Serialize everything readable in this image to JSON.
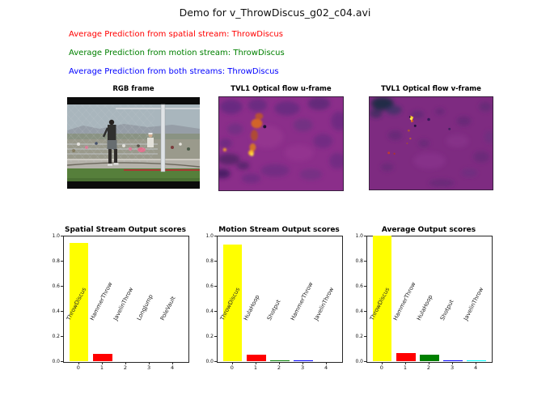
{
  "figure_title": "Demo for v_ThrowDiscus_g02_c04.avi",
  "predictions": [
    {
      "label": "Average Prediction from spatial stream: ThrowDiscus",
      "color": "#ff0000"
    },
    {
      "label": "Average Prediction from motion stream: ThrowDiscus",
      "color": "#008000"
    },
    {
      "label": "Average Prediction from both streams: ThrowDiscus",
      "color": "#0000ff"
    }
  ],
  "images": [
    {
      "title": "RGB frame",
      "description": "video frame of a discus thrower in front of a cage net with spectators"
    },
    {
      "title": "TVL1 Optical flow u-frame",
      "description": "purple flow field with orange motion blobs"
    },
    {
      "title": "TVL1 Optical flow v-frame",
      "description": "purple flow field with dark patch and bright spot"
    }
  ],
  "chart_data": [
    {
      "type": "bar",
      "title": "Spatial Stream Output scores",
      "categories": [
        0,
        1,
        2,
        3,
        4
      ],
      "bar_labels": [
        "ThrowDiscus",
        "HammerThrow",
        "JavelinThrow",
        "LongJump",
        "PoleVault"
      ],
      "values": [
        0.94,
        0.06,
        0.0,
        0.0,
        0.0
      ],
      "colors": [
        "#ffff00",
        "#ff0000",
        "#008000",
        "#0000ff",
        "#00ffff"
      ],
      "ylim": [
        0.0,
        1.0
      ],
      "yticks": [
        0.0,
        0.2,
        0.4,
        0.6,
        0.8,
        1.0
      ],
      "xticks": [
        0,
        1,
        2,
        3,
        4
      ],
      "label_rotation": 63,
      "grid": false,
      "legend": false
    },
    {
      "type": "bar",
      "title": "Motion Stream Output scores",
      "categories": [
        0,
        1,
        2,
        3,
        4
      ],
      "bar_labels": [
        "ThrowDiscus",
        "HulaHoop",
        "Shotput",
        "HammerThrow",
        "JavelinThrow"
      ],
      "values": [
        0.93,
        0.05,
        0.004,
        0.006,
        0.0
      ],
      "colors": [
        "#ffff00",
        "#ff0000",
        "#008000",
        "#0000ff",
        "#00ffff"
      ],
      "ylim": [
        0.0,
        1.0
      ],
      "yticks": [
        0.0,
        0.2,
        0.4,
        0.6,
        0.8,
        1.0
      ],
      "xticks": [
        0,
        1,
        2,
        3,
        4
      ],
      "label_rotation": 63,
      "grid": false,
      "legend": false
    },
    {
      "type": "bar",
      "title": "Average Output scores",
      "categories": [
        0,
        1,
        2,
        3,
        4
      ],
      "bar_labels": [
        "ThrowDiscus",
        "HammerThrow",
        "HulaHoop",
        "Shotput",
        "JavelinThrow"
      ],
      "values": [
        1.0,
        0.065,
        0.05,
        0.006,
        0.004
      ],
      "colors": [
        "#ffff00",
        "#ff0000",
        "#008000",
        "#0000ff",
        "#00ffff"
      ],
      "ylim": [
        0.0,
        1.0
      ],
      "yticks": [
        0.0,
        0.2,
        0.4,
        0.6,
        0.8,
        1.0
      ],
      "xticks": [
        0,
        1,
        2,
        3,
        4
      ],
      "label_rotation": 63,
      "grid": false,
      "legend": false
    }
  ]
}
